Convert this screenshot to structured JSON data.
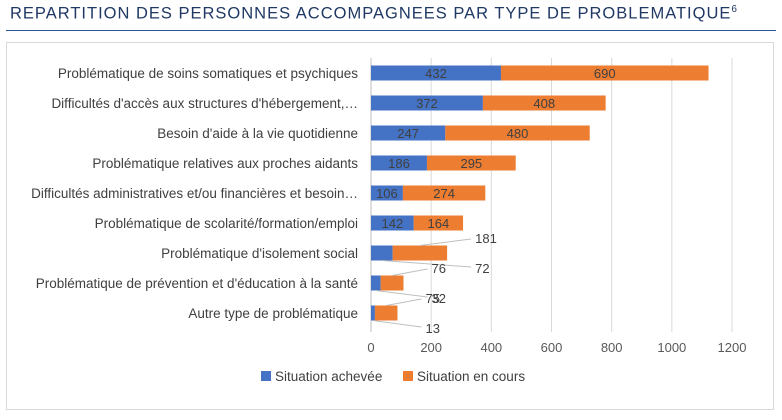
{
  "header": {
    "title": "REPARTITION DES PERSONNES ACCOMPAGNEES PAR TYPE DE PROBLEMATIQUE",
    "footnote_mark": "6"
  },
  "chart_data": {
    "type": "bar",
    "orientation": "horizontal",
    "stacked": true,
    "categories": [
      "Problématique de soins somatiques et psychiques",
      "Difficultés d'accès aux structures d'hébergement,…",
      "Besoin d'aide à la vie quotidienne",
      "Problématique relatives aux proches aidants",
      "Difficultés administratives et/ou financières et besoin…",
      "Problématique de scolarité/formation/emploi",
      "Problématique d'isolement social",
      "Problématique de prévention et d'éducation à la santé",
      "Autre type de problématique"
    ],
    "series": [
      {
        "name": "Situation achevée",
        "color": "#4472c4",
        "values": [
          432,
          372,
          247,
          186,
          106,
          142,
          72,
          32,
          13
        ]
      },
      {
        "name": "Situation en cours",
        "color": "#ed7d31",
        "values": [
          690,
          408,
          480,
          295,
          274,
          164,
          181,
          76,
          75
        ]
      }
    ],
    "xlim": [
      0,
      1200
    ],
    "xticks": [
      0,
      200,
      400,
      600,
      800,
      1000,
      1200
    ],
    "grid": "vertical",
    "legend_position": "bottom"
  }
}
